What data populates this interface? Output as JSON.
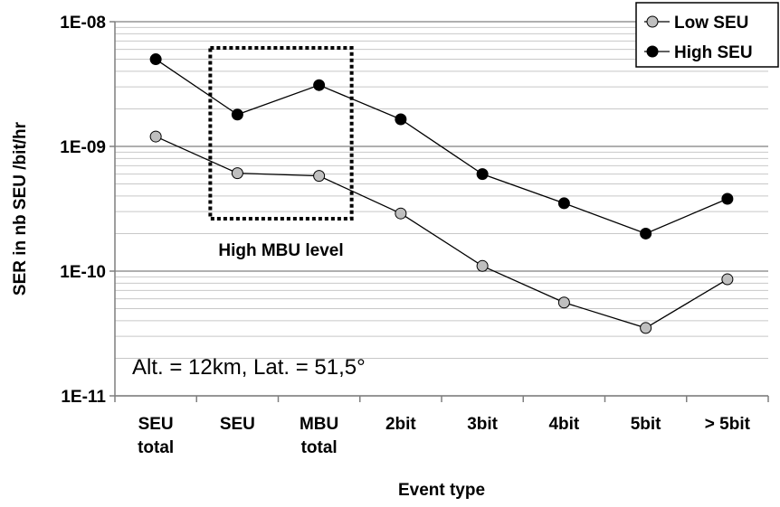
{
  "chart_data": {
    "type": "line",
    "title": "",
    "xlabel": "Event type",
    "ylabel": "SER in nb SEU /bit/hr",
    "yscale": "log",
    "ylim": [
      1e-11,
      1e-08
    ],
    "ytick_labels": [
      "1E-11",
      "1E-10",
      "1E-09",
      "1E-08"
    ],
    "ytick_values": [
      1e-11,
      1e-10,
      1e-09,
      1e-08
    ],
    "categories": [
      [
        "SEU",
        "total"
      ],
      [
        "SEU"
      ],
      [
        "MBU",
        "total"
      ],
      [
        "2bit"
      ],
      [
        "3bit"
      ],
      [
        "4bit"
      ],
      [
        "5bit"
      ],
      [
        "> 5bit"
      ]
    ],
    "series": [
      {
        "name": "Low SEU",
        "color": "#bfbfbf",
        "values": [
          1.2e-09,
          6.1e-10,
          5.8e-10,
          2.9e-10,
          1.1e-10,
          5.6e-11,
          3.5e-11,
          8.6e-11
        ]
      },
      {
        "name": "High SEU",
        "color": "#000000",
        "values": [
          5e-09,
          1.8e-09,
          3.1e-09,
          1.65e-09,
          6e-10,
          3.5e-10,
          2e-10,
          3.8e-10
        ]
      }
    ],
    "grid": true,
    "legend_position": "top-right",
    "annotations": {
      "box_label": "High MBU level",
      "box_categories": [
        "SEU",
        "MBU total"
      ],
      "conditions": "Alt. = 12km, Lat. = 51,5°"
    }
  }
}
